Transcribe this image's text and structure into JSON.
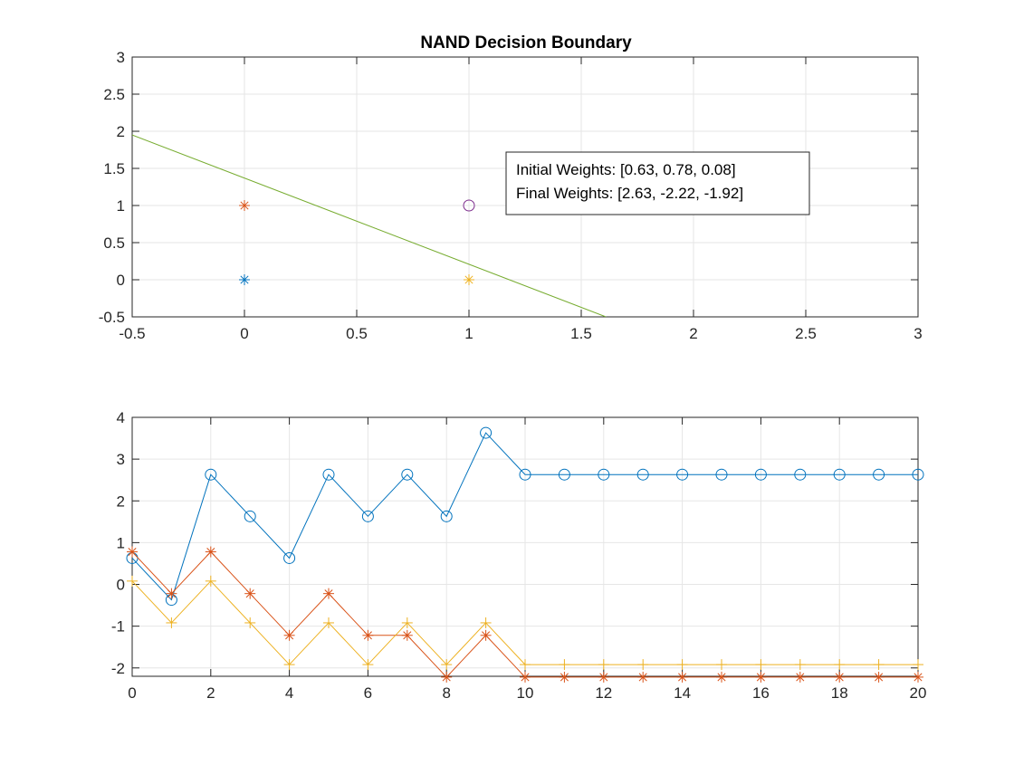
{
  "chart_data": [
    {
      "type": "scatter",
      "title": "NAND Decision Boundary",
      "xlabel": "",
      "ylabel": "",
      "xlim": [
        -0.5,
        3
      ],
      "ylim": [
        -0.5,
        3
      ],
      "xticks": [
        -0.5,
        0,
        0.5,
        1,
        1.5,
        2,
        2.5,
        3
      ],
      "yticks": [
        -0.5,
        0,
        0.5,
        1,
        1.5,
        2,
        2.5,
        3
      ],
      "xtick_labels": [
        "-0.5",
        "0",
        "0.5",
        "1",
        "1.5",
        "2",
        "2.5",
        "3"
      ],
      "ytick_labels": [
        "-0.5",
        "0",
        "0.5",
        "1",
        "1.5",
        "2",
        "2.5",
        "3"
      ],
      "grid": true,
      "points": [
        {
          "x": 0,
          "y": 0,
          "marker": "asterisk",
          "color": "#0072BD"
        },
        {
          "x": 0,
          "y": 1,
          "marker": "asterisk",
          "color": "#D95319"
        },
        {
          "x": 1,
          "y": 0,
          "marker": "asterisk",
          "color": "#EDB120"
        },
        {
          "x": 1,
          "y": 1,
          "marker": "circle",
          "color": "#7E2F8E"
        }
      ],
      "boundary_line": {
        "color": "#77AC30",
        "x": [
          -0.5,
          1.61
        ],
        "y": [
          1.95,
          -0.5
        ]
      },
      "legend_lines": [
        "Initial Weights: [0.63, 0.78, 0.08]",
        "Final Weights: [2.63, -2.22, -1.92]"
      ],
      "legend_position": "top-right"
    },
    {
      "type": "line",
      "title": "",
      "xlabel": "",
      "ylabel": "",
      "xlim": [
        0,
        20
      ],
      "ylim": [
        -2.2,
        4
      ],
      "xticks": [
        0,
        2,
        4,
        6,
        8,
        10,
        12,
        14,
        16,
        18,
        20
      ],
      "yticks": [
        -2,
        -1,
        0,
        1,
        2,
        3,
        4
      ],
      "xtick_labels": [
        "0",
        "2",
        "4",
        "6",
        "8",
        "10",
        "12",
        "14",
        "16",
        "18",
        "20"
      ],
      "ytick_labels": [
        "-2",
        "-1",
        "0",
        "1",
        "2",
        "3",
        "4"
      ],
      "grid": true,
      "x": [
        0,
        1,
        2,
        3,
        4,
        5,
        6,
        7,
        8,
        9,
        10,
        11,
        12,
        13,
        14,
        15,
        16,
        17,
        18,
        19,
        20
      ],
      "series": [
        {
          "marker": "circle",
          "color": "#0072BD",
          "values": [
            0.63,
            -0.37,
            2.63,
            1.63,
            0.63,
            2.63,
            1.63,
            2.63,
            1.63,
            3.63,
            2.63,
            2.63,
            2.63,
            2.63,
            2.63,
            2.63,
            2.63,
            2.63,
            2.63,
            2.63,
            2.63
          ]
        },
        {
          "marker": "asterisk",
          "color": "#D95319",
          "values": [
            0.78,
            -0.22,
            0.78,
            -0.22,
            -1.22,
            -0.22,
            -1.22,
            -1.22,
            -2.22,
            -1.22,
            -2.22,
            -2.22,
            -2.22,
            -2.22,
            -2.22,
            -2.22,
            -2.22,
            -2.22,
            -2.22,
            -2.22,
            -2.22
          ]
        },
        {
          "marker": "plus",
          "color": "#EDB120",
          "values": [
            0.08,
            -0.92,
            0.08,
            -0.92,
            -1.92,
            -0.92,
            -1.92,
            -0.92,
            -1.92,
            -0.92,
            -1.92,
            -1.92,
            -1.92,
            -1.92,
            -1.92,
            -1.92,
            -1.92,
            -1.92,
            -1.92,
            -1.92,
            -1.92
          ]
        }
      ]
    }
  ]
}
